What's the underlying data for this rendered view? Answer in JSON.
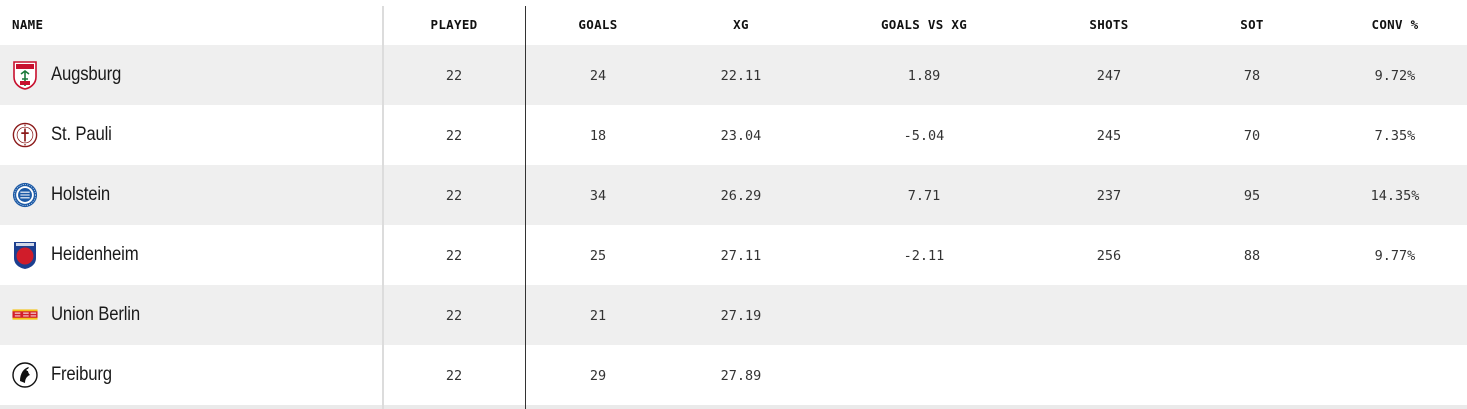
{
  "columns": {
    "name": "NAME",
    "played": "PLAYED",
    "goals": "GOALS",
    "xg": "XG",
    "goals_vs_xg": "GOALS VS XG",
    "shots": "SHOTS",
    "sot": "SOT",
    "conv": "CONV %"
  },
  "rows": [
    {
      "team": "Augsburg",
      "crest_icon": "augsburg-crest-icon",
      "played": "22",
      "goals": "24",
      "xg": "22.11",
      "goals_vs_xg": "1.89",
      "shots": "247",
      "sot": "78",
      "conv": "9.72%"
    },
    {
      "team": "St. Pauli",
      "crest_icon": "st-pauli-crest-icon",
      "played": "22",
      "goals": "18",
      "xg": "23.04",
      "goals_vs_xg": "-5.04",
      "shots": "245",
      "sot": "70",
      "conv": "7.35%"
    },
    {
      "team": "Holstein",
      "crest_icon": "holstein-crest-icon",
      "played": "22",
      "goals": "34",
      "xg": "26.29",
      "goals_vs_xg": "7.71",
      "shots": "237",
      "sot": "95",
      "conv": "14.35%"
    },
    {
      "team": "Heidenheim",
      "crest_icon": "heidenheim-crest-icon",
      "played": "22",
      "goals": "25",
      "xg": "27.11",
      "goals_vs_xg": "-2.11",
      "shots": "256",
      "sot": "88",
      "conv": "9.77%"
    },
    {
      "team": "Union Berlin",
      "crest_icon": "union-berlin-crest-icon",
      "played": "22",
      "goals": "21",
      "xg": "27.19",
      "goals_vs_xg": "",
      "shots": "",
      "sot": "",
      "conv": ""
    },
    {
      "team": "Freiburg",
      "crest_icon": "freiburg-crest-icon",
      "played": "22",
      "goals": "29",
      "xg": "27.89",
      "goals_vs_xg": "",
      "shots": "",
      "sot": "",
      "conv": ""
    }
  ],
  "colors": {
    "header_rule": "#1a1a1a",
    "row_shade": "#efefef",
    "divider_dark": "#333333",
    "divider_light": "#dcdcdc"
  }
}
